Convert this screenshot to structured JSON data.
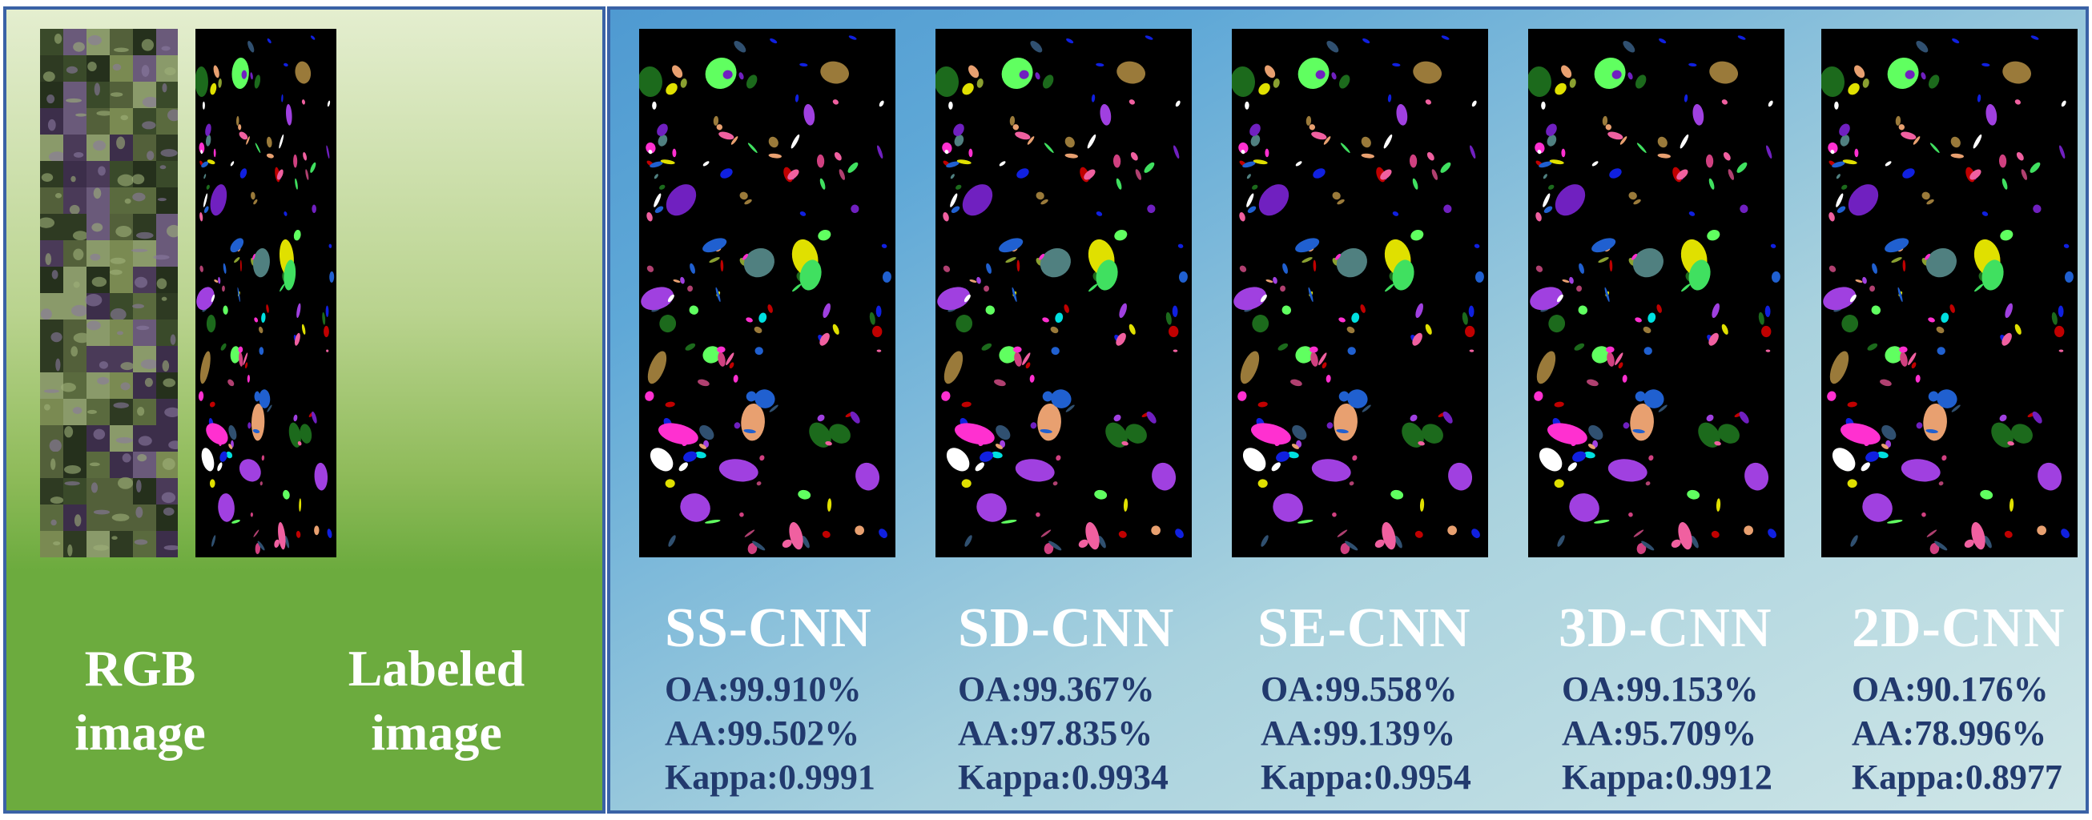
{
  "inputs": {
    "rgb": {
      "line1": "RGB",
      "line2": "image"
    },
    "labeled": {
      "line1": "Labeled",
      "line2": "image"
    }
  },
  "methods": [
    {
      "name": "SS-CNN",
      "oa": "OA:99.910%",
      "aa": "AA:99.502%",
      "kappa": "Kappa:0.9991"
    },
    {
      "name": "SD-CNN",
      "oa": "OA:99.367%",
      "aa": "AA:97.835%",
      "kappa": "Kappa:0.9934"
    },
    {
      "name": "SE-CNN",
      "oa": "OA:99.558%",
      "aa": "AA:99.139%",
      "kappa": "Kappa:0.9954"
    },
    {
      "name": "3D-CNN",
      "oa": "OA:99.153%",
      "aa": "AA:95.709%",
      "kappa": "Kappa:0.9912"
    },
    {
      "name": "2D-CNN",
      "oa": "OA:90.176%",
      "aa": "AA:78.996%",
      "kappa": "Kappa:0.8977"
    }
  ],
  "colors": {
    "left_panel_bottom": "#6cab3e",
    "right_panel_accent": "#4f9ad1",
    "border": "#3a62a6",
    "metric_text": "#223a6e",
    "title_text": "#ffffff"
  }
}
